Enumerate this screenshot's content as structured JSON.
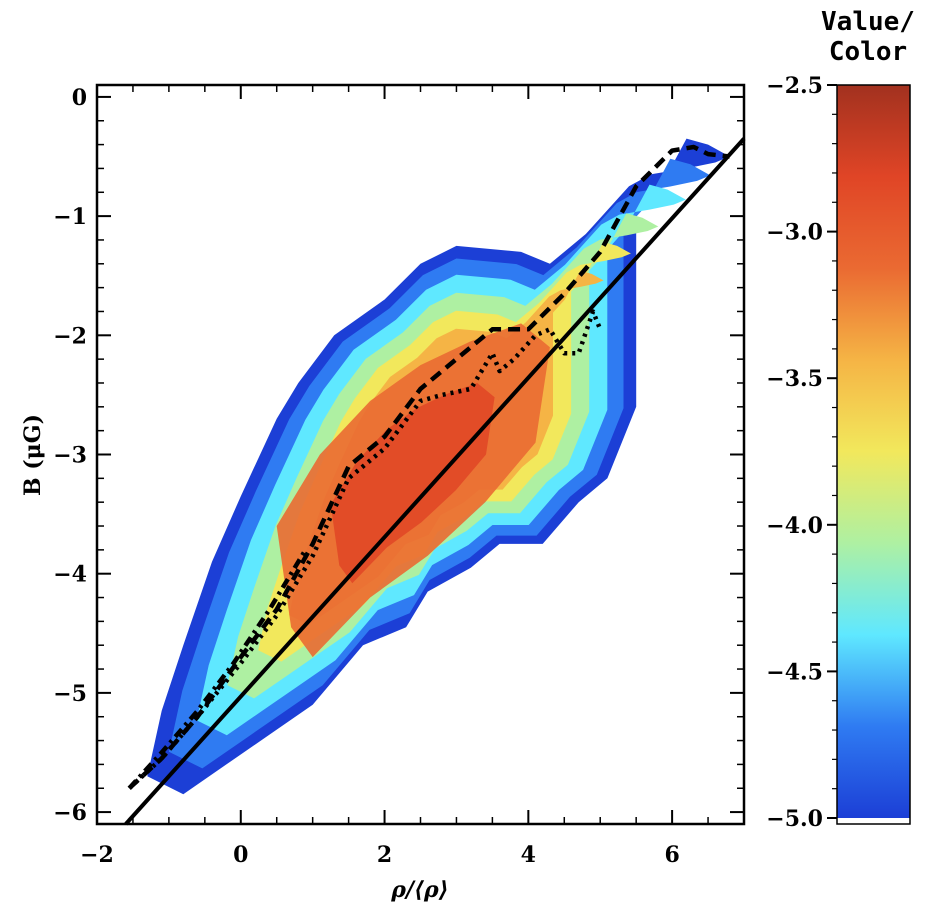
{
  "chart_data": {
    "type": "heatmap",
    "title": "",
    "xlabel": "ρ/⟨ρ⟩",
    "ylabel": "B (μG)",
    "xlim": [
      -2,
      7
    ],
    "ylim": [
      -6.1,
      0.1
    ],
    "xticks": [
      -2,
      0,
      2,
      4,
      6
    ],
    "yticks": [
      0,
      -1,
      -2,
      -3,
      -4,
      -5,
      -6
    ],
    "xtick_labels": [
      "−2",
      "0",
      "2",
      "4",
      "6"
    ],
    "ytick_labels": [
      "0",
      "−1",
      "−2",
      "−3",
      "−4",
      "−5",
      "−6"
    ],
    "colorbar": {
      "title_line1": "Value/",
      "title_line2": "Color",
      "range": [
        -5.0,
        -2.5
      ],
      "ticks": [
        -2.5,
        -3.0,
        -3.5,
        -4.0,
        -4.5,
        -5.0
      ],
      "tick_labels": [
        "−2.5",
        "−3.0",
        "−3.5",
        "−4.0",
        "−4.5",
        "−5.0"
      ],
      "colors": [
        "#1c3fd6",
        "#2f7bf2",
        "#5fe8ff",
        "#aef0a2",
        "#f2e85c",
        "#f5b445",
        "#ea6a32",
        "#e04526",
        "#a2311f"
      ]
    },
    "density_outline": [
      [
        -1.3,
        -5.7
      ],
      [
        -0.8,
        -5.85
      ],
      [
        -0.2,
        -5.6
      ],
      [
        0.4,
        -5.35
      ],
      [
        1.0,
        -5.1
      ],
      [
        1.7,
        -4.6
      ],
      [
        2.3,
        -4.45
      ],
      [
        2.6,
        -4.15
      ],
      [
        3.2,
        -3.95
      ],
      [
        3.6,
        -3.75
      ],
      [
        4.2,
        -3.75
      ],
      [
        4.7,
        -3.4
      ],
      [
        5.1,
        -3.2
      ],
      [
        5.5,
        -2.6
      ],
      [
        5.5,
        -1.0
      ],
      [
        5.8,
        -0.8
      ],
      [
        6.2,
        -0.35
      ],
      [
        6.5,
        -0.4
      ],
      [
        6.8,
        -0.5
      ],
      [
        6.6,
        -0.55
      ],
      [
        6.2,
        -0.6
      ],
      [
        5.7,
        -0.65
      ],
      [
        5.4,
        -0.75
      ],
      [
        4.8,
        -1.15
      ],
      [
        4.3,
        -1.4
      ],
      [
        3.9,
        -1.3
      ],
      [
        3.0,
        -1.25
      ],
      [
        2.5,
        -1.4
      ],
      [
        2.0,
        -1.7
      ],
      [
        1.3,
        -2.0
      ],
      [
        0.8,
        -2.4
      ],
      [
        0.5,
        -2.7
      ],
      [
        0.0,
        -3.35
      ],
      [
        -0.4,
        -3.9
      ],
      [
        -0.8,
        -4.6
      ],
      [
        -1.1,
        -5.15
      ]
    ],
    "density_core": [
      [
        0.7,
        -4.45
      ],
      [
        1.0,
        -4.7
      ],
      [
        1.8,
        -4.2
      ],
      [
        2.6,
        -3.85
      ],
      [
        3.4,
        -3.4
      ],
      [
        4.1,
        -2.9
      ],
      [
        4.3,
        -2.1
      ],
      [
        3.9,
        -1.9
      ],
      [
        3.2,
        -2.05
      ],
      [
        2.5,
        -2.25
      ],
      [
        1.8,
        -2.55
      ],
      [
        1.1,
        -3.0
      ],
      [
        0.5,
        -3.6
      ]
    ],
    "series": [
      {
        "name": "solid fit",
        "style": "solid",
        "x": [
          -1.6,
          7.0
        ],
        "y": [
          -6.1,
          -0.35
        ]
      },
      {
        "name": "dashed",
        "style": "dashed",
        "x": [
          -1.55,
          -1.1,
          -0.6,
          0.0,
          0.5,
          1.0,
          1.5,
          2.0,
          2.5,
          3.0,
          3.5,
          4.0,
          4.5,
          5.0,
          5.5,
          6.0,
          6.3,
          6.5,
          6.8
        ],
        "y": [
          -5.8,
          -5.55,
          -5.2,
          -4.7,
          -4.3,
          -3.75,
          -3.1,
          -2.85,
          -2.45,
          -2.2,
          -1.95,
          -1.95,
          -1.65,
          -1.3,
          -0.75,
          -0.45,
          -0.42,
          -0.48,
          -0.5
        ]
      },
      {
        "name": "dotted",
        "style": "dotted",
        "x": [
          -1.55,
          -1.1,
          -0.6,
          0.0,
          0.5,
          1.0,
          1.5,
          2.0,
          2.5,
          2.8,
          3.2,
          3.5,
          3.6,
          3.8,
          4.1,
          4.3,
          4.5,
          4.7,
          4.9,
          5.0
        ],
        "y": [
          -5.8,
          -5.55,
          -5.2,
          -4.75,
          -4.35,
          -3.85,
          -3.2,
          -2.95,
          -2.55,
          -2.5,
          -2.45,
          -2.15,
          -2.3,
          -2.2,
          -2.0,
          -1.95,
          -2.15,
          -2.15,
          -1.8,
          -1.95
        ]
      },
      {
        "name": "dash-dot",
        "style": "dashdot",
        "x": [
          -1.55,
          -1.1,
          -0.6,
          -0.1,
          0.4,
          0.9
        ],
        "y": [
          -5.8,
          -5.5,
          -5.15,
          -4.75,
          -4.3,
          -3.8
        ]
      }
    ]
  }
}
